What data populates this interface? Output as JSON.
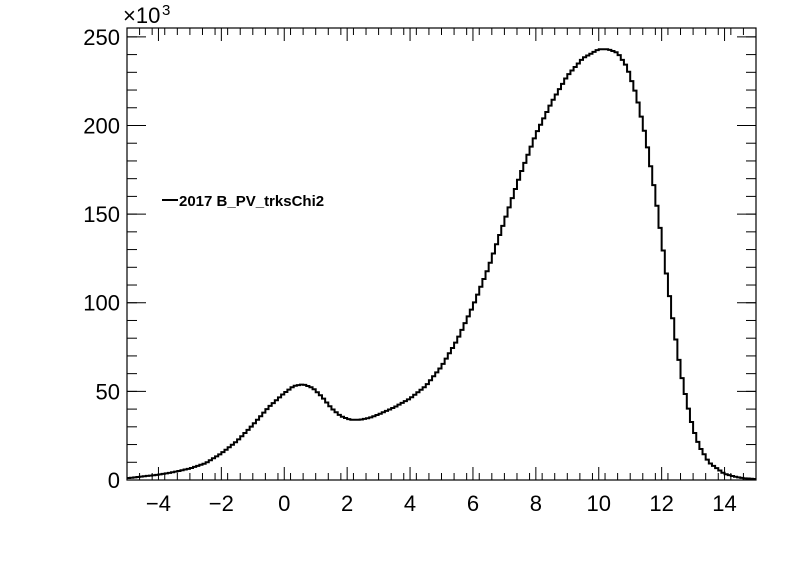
{
  "chart_data": {
    "type": "line",
    "style": "step-histogram",
    "title": "",
    "xlabel": "",
    "ylabel": "",
    "y_multiplier_label": {
      "base": "×10",
      "exponent": "3"
    },
    "xlim": [
      -5,
      15
    ],
    "ylim": [
      0,
      255
    ],
    "x_ticks": [
      -4,
      -2,
      0,
      2,
      4,
      6,
      8,
      10,
      12,
      14
    ],
    "y_ticks": [
      0,
      50,
      100,
      150,
      200,
      250
    ],
    "grid": false,
    "legend_position": "upper-left",
    "series": [
      {
        "name": "2017 B_PV_trksChi2",
        "color": "#000000",
        "x": [
          -5,
          -4.5,
          -4,
          -3.5,
          -3,
          -2.5,
          -2,
          -1.5,
          -1,
          -0.5,
          0,
          0.3,
          0.6,
          0.9,
          1.2,
          1.5,
          1.8,
          2.1,
          2.4,
          2.7,
          3,
          3.5,
          4,
          4.5,
          5,
          5.5,
          6,
          6.5,
          7,
          7.5,
          8,
          8.5,
          9,
          9.5,
          10,
          10.3,
          10.6,
          10.9,
          11.2,
          11.5,
          11.8,
          12,
          12.2,
          12.4,
          12.6,
          12.8,
          13,
          13.2,
          13.5,
          13.8,
          14,
          14.3,
          14.6,
          15
        ],
        "values": [
          1,
          2,
          3,
          4.5,
          6.5,
          9.5,
          15,
          22,
          31,
          41,
          49,
          53,
          54,
          52,
          47,
          40.5,
          36,
          34,
          34,
          35,
          37,
          41,
          46,
          53,
          64,
          79,
          98,
          120,
          146,
          172,
          195,
          213,
          228,
          238,
          243,
          243,
          241,
          233,
          217,
          193,
          161,
          136,
          110,
          85,
          62,
          44,
          29,
          19,
          10,
          6,
          3.5,
          2,
          1,
          0.5
        ]
      }
    ]
  }
}
